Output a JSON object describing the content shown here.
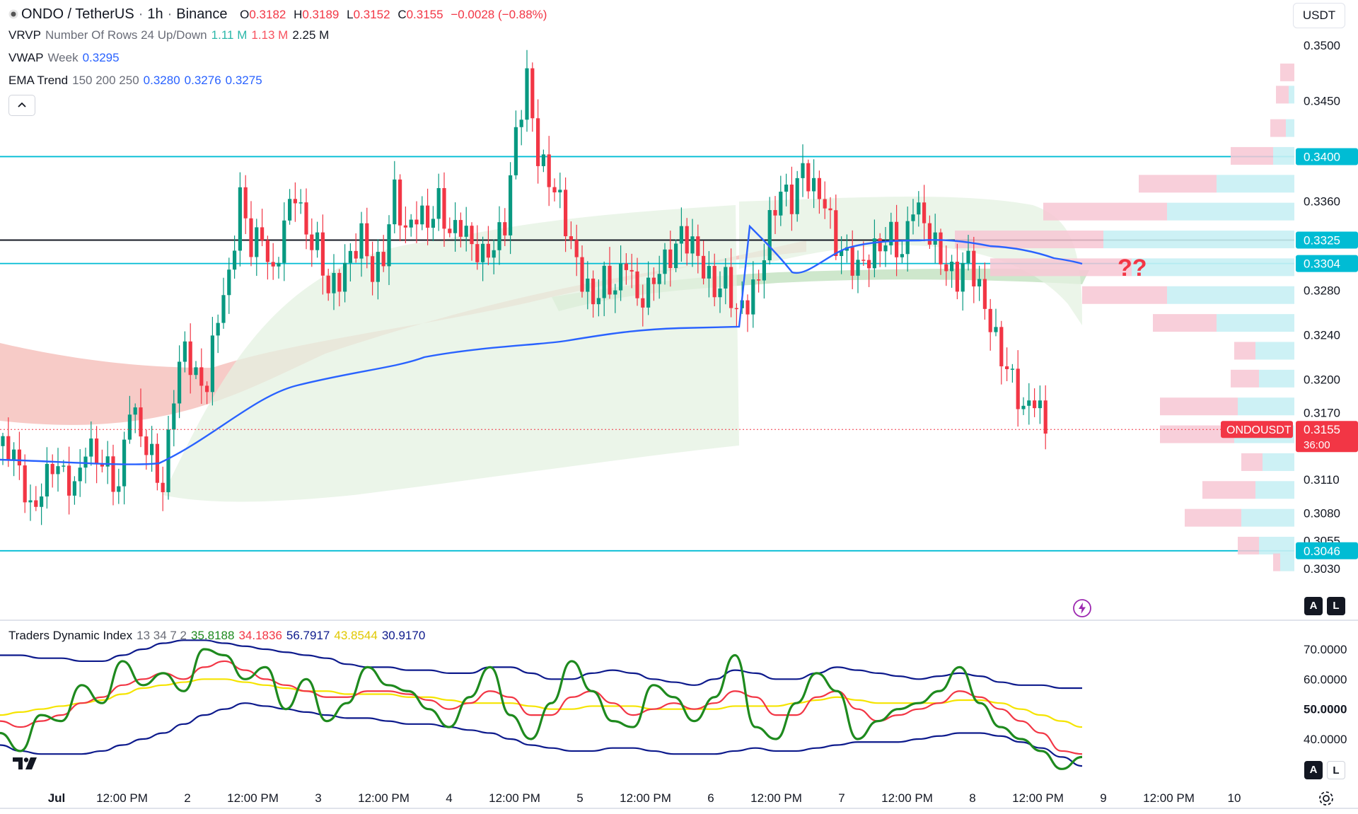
{
  "header": {
    "symbol": "ONDO / TetherUS",
    "interval": "1h",
    "exchange": "Binance",
    "sep": "·",
    "o_label": "O",
    "o_value": "0.3182",
    "h_label": "H",
    "h_value": "0.3189",
    "l_label": "L",
    "l_value": "0.3152",
    "c_label": "C",
    "c_value": "0.3155",
    "change": "−0.0028 (−0.88%)"
  },
  "currency": "USDT",
  "indicators": {
    "vrvp": {
      "name": "VRVP",
      "params": "Number Of Rows 24 Up/Down",
      "v1": "1.11 M",
      "v2": "1.13 M",
      "v3": "2.25 M"
    },
    "vwap": {
      "name": "VWAP",
      "params": "Week",
      "v1": "0.3295"
    },
    "ema": {
      "name": "EMA Trend",
      "params": "150 200 250",
      "v1": "0.3280",
      "v2": "0.3276",
      "v3": "0.3275"
    },
    "tdi": {
      "name": "Traders Dynamic Index",
      "params": "13 34 7 2",
      "v1": "35.8188",
      "v2": "34.1836",
      "v3": "56.7917",
      "v4": "43.8544",
      "v5": "30.9170"
    }
  },
  "annotation": "??",
  "buttons": {
    "a": "A",
    "l": "L"
  },
  "icons": {
    "collapse": "chevron-up-icon",
    "replay": "lightning-icon",
    "settings": "gear-icon",
    "logo": "tradingview-logo"
  },
  "colors": {
    "up": "#089981",
    "down": "#f23645",
    "vwap": "#2962ff",
    "level": "#00bcd4",
    "tdi_green": "#1e8a1e",
    "tdi_red": "#f23645",
    "tdi_yellow": "#f5e400",
    "tdi_band": "#0d1a8c"
  },
  "chart_data": {
    "type": "candlestick",
    "price_axis": {
      "ticks": [
        "0.3500",
        "0.3450",
        "0.3360",
        "0.3280",
        "0.3240",
        "0.3200",
        "0.3170",
        "0.3110",
        "0.3080",
        "0.3055",
        "0.3030"
      ],
      "labels": [
        {
          "text": "0.3400",
          "value": 0.34,
          "color": "#00bcd4"
        },
        {
          "text": "0.3325",
          "value": 0.3325,
          "color": "#00bcd4"
        },
        {
          "text": "0.3304",
          "value": 0.3304,
          "color": "#00bcd4"
        },
        {
          "text": "0.3046",
          "value": 0.3046,
          "color": "#00bcd4"
        }
      ],
      "current": {
        "symbol": "ONDOUSDT",
        "price": "0.3155",
        "countdown": "36:00"
      }
    },
    "levels": [
      {
        "value": 0.34,
        "color": "#00bcd4"
      },
      {
        "value": 0.3325,
        "color": "#131722"
      },
      {
        "value": 0.3304,
        "color": "#00bcd4"
      },
      {
        "value": 0.3046,
        "color": "#00bcd4"
      }
    ],
    "time_axis": [
      "Jul",
      "12:00 PM",
      "2",
      "12:00 PM",
      "3",
      "12:00 PM",
      "4",
      "12:00 PM",
      "5",
      "12:00 PM",
      "6",
      "12:00 PM",
      "7",
      "12:00 PM",
      "8",
      "12:00 PM",
      "9",
      "12:00 PM",
      "10"
    ],
    "close_path": [
      0.314,
      0.312,
      0.308,
      0.31,
      0.3125,
      0.3115,
      0.31,
      0.314,
      0.313,
      0.312,
      0.31,
      0.318,
      0.315,
      0.313,
      0.31,
      0.319,
      0.323,
      0.32,
      0.3195,
      0.326,
      0.329,
      0.3365,
      0.332,
      0.333,
      0.329,
      0.334,
      0.337,
      0.333,
      0.332,
      0.328,
      0.329,
      0.331,
      0.333,
      0.3295,
      0.331,
      0.337,
      0.333,
      0.335,
      0.334,
      0.336,
      0.333,
      0.334,
      0.332,
      0.331,
      0.332,
      0.334,
      0.342,
      0.347,
      0.34,
      0.338,
      0.336,
      0.332,
      0.329,
      0.327,
      0.329,
      0.328,
      0.331,
      0.327,
      0.328,
      0.33,
      0.331,
      0.333,
      0.332,
      0.33,
      0.328,
      0.329,
      0.326,
      0.327,
      0.329,
      0.334,
      0.337,
      0.336,
      0.339,
      0.337,
      0.336,
      0.332,
      0.331,
      0.33,
      0.331,
      0.332,
      0.333,
      0.331,
      0.336,
      0.334,
      0.332,
      0.33,
      0.329,
      0.331,
      0.328,
      0.325,
      0.322,
      0.32,
      0.317,
      0.3185,
      0.3155
    ],
    "tdi": {
      "axis": [
        "70.0000",
        "60.0000",
        "50.0000",
        "40.0000"
      ],
      "green": [
        42,
        36,
        48,
        46,
        58,
        52,
        66,
        58,
        62,
        56,
        70,
        68,
        60,
        64,
        50,
        60,
        46,
        52,
        64,
        58,
        56,
        50,
        44,
        54,
        64,
        48,
        40,
        52,
        66,
        56,
        46,
        44,
        58,
        54,
        46,
        54,
        68,
        44,
        40,
        52,
        62,
        56,
        40,
        46,
        50,
        52,
        56,
        64,
        52,
        44,
        40,
        36,
        30,
        34
      ],
      "red": [
        46,
        44,
        46,
        48,
        52,
        54,
        58,
        60,
        62,
        60,
        64,
        66,
        63,
        60,
        58,
        56,
        54,
        54,
        56,
        56,
        55,
        53,
        50,
        52,
        56,
        54,
        48,
        48,
        54,
        56,
        52,
        48,
        50,
        52,
        50,
        52,
        56,
        54,
        48,
        48,
        54,
        56,
        50,
        46,
        48,
        50,
        52,
        56,
        54,
        50,
        46,
        42,
        36,
        35
      ],
      "yellow": [
        48,
        49,
        50,
        51,
        52,
        53,
        55,
        57,
        58,
        59,
        60,
        60,
        59,
        58,
        57,
        56,
        56,
        55,
        55,
        55,
        54,
        54,
        53,
        52,
        52,
        52,
        51,
        50,
        50,
        51,
        51,
        51,
        50,
        50,
        50,
        50,
        51,
        51,
        51,
        52,
        53,
        54,
        53,
        52,
        52,
        52,
        52,
        53,
        53,
        52,
        50,
        48,
        46,
        44
      ],
      "upper": [
        68,
        68,
        67,
        67,
        66,
        66,
        68,
        70,
        72,
        73,
        73,
        72,
        71,
        70,
        69,
        68,
        67,
        65,
        64,
        64,
        63,
        63,
        62,
        62,
        64,
        64,
        62,
        60,
        60,
        62,
        63,
        62,
        60,
        59,
        58,
        60,
        63,
        62,
        60,
        60,
        62,
        64,
        63,
        62,
        61,
        60,
        61,
        62,
        61,
        59,
        58,
        58,
        57,
        57
      ],
      "lower": [
        38,
        36,
        35,
        35,
        35,
        36,
        38,
        40,
        42,
        45,
        48,
        50,
        52,
        51,
        50,
        49,
        48,
        47,
        47,
        46,
        45,
        45,
        44,
        43,
        42,
        40,
        38,
        37,
        36,
        36,
        37,
        37,
        36,
        35,
        35,
        35,
        36,
        37,
        36,
        36,
        37,
        38,
        39,
        39,
        39,
        40,
        41,
        42,
        42,
        41,
        39,
        37,
        34,
        31
      ]
    }
  }
}
